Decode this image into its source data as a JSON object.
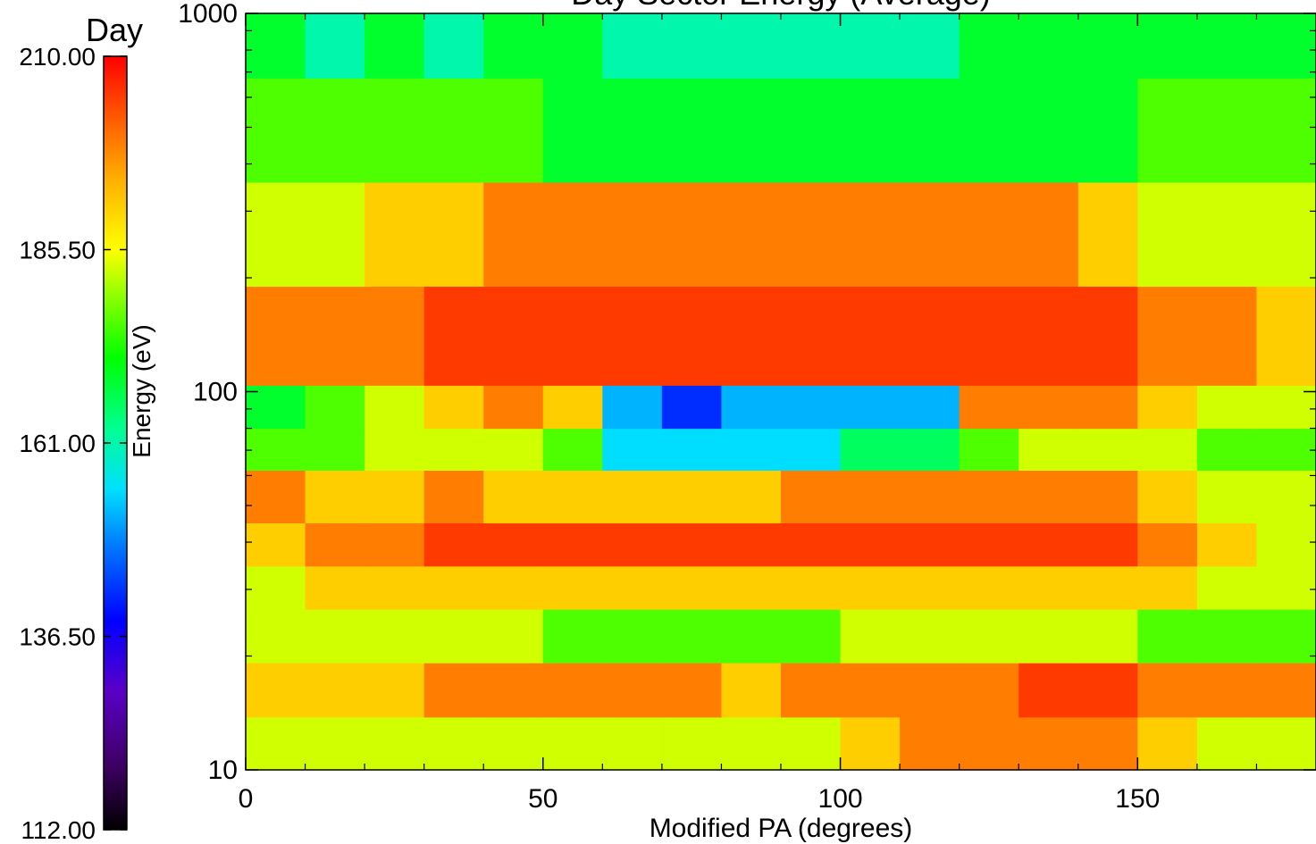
{
  "chart_data": {
    "type": "heatmap",
    "title": "Day Sector Energy (Average)",
    "xlabel": "Modified PA (degrees)",
    "ylabel": "",
    "xlim": [
      0,
      180
    ],
    "ylim": [
      10,
      1000
    ],
    "y_scale": "log",
    "x_ticks": [
      0,
      50,
      100,
      150
    ],
    "x_tick_labels": [
      "0",
      "50",
      "100",
      "150"
    ],
    "y_ticks": [
      10,
      100,
      1000
    ],
    "y_tick_labels": [
      "10",
      "100",
      "1000"
    ],
    "grid": false,
    "x_edges": [
      0,
      10,
      20,
      30,
      40,
      50,
      60,
      70,
      80,
      90,
      100,
      110,
      120,
      130,
      140,
      150,
      160,
      170,
      180
    ],
    "y_edges": [
      10,
      13.8,
      19.2,
      26.6,
      34.6,
      45,
      62,
      80,
      104,
      190,
      358,
      675,
      1000
    ],
    "rows": [
      {
        "values": [
          183,
          183,
          183,
          183,
          183,
          183,
          183,
          183,
          183,
          183,
          191,
          199,
          199,
          199,
          199,
          191,
          183,
          183
        ]
      },
      {
        "values": [
          191,
          191,
          191,
          199,
          199,
          199,
          199,
          199,
          191,
          199,
          199,
          199,
          199,
          205,
          205,
          199,
          199,
          199
        ]
      },
      {
        "values": [
          183,
          183,
          183,
          183,
          183,
          176,
          176,
          176,
          176,
          176,
          183,
          183,
          183,
          183,
          183,
          176,
          176,
          176
        ]
      },
      {
        "values": [
          183,
          191,
          191,
          191,
          191,
          191,
          191,
          191,
          191,
          191,
          191,
          191,
          191,
          191,
          191,
          191,
          183,
          183
        ]
      },
      {
        "values": [
          191,
          199,
          199,
          205,
          205,
          205,
          205,
          205,
          205,
          205,
          205,
          205,
          205,
          205,
          205,
          199,
          191,
          183
        ]
      },
      {
        "values": [
          199,
          191,
          191,
          199,
          191,
          191,
          191,
          191,
          191,
          199,
          199,
          199,
          199,
          199,
          199,
          191,
          183,
          183
        ]
      },
      {
        "values": [
          176,
          176,
          183,
          183,
          183,
          176,
          155,
          155,
          155,
          155,
          166,
          166,
          176,
          183,
          183,
          183,
          176,
          176
        ]
      },
      {
        "values": [
          169,
          176,
          183,
          191,
          199,
          191,
          152,
          142,
          152,
          152,
          152,
          152,
          199,
          199,
          199,
          191,
          183,
          183
        ]
      },
      {
        "values": [
          199,
          199,
          199,
          205,
          205,
          205,
          205,
          205,
          205,
          205,
          205,
          205,
          205,
          205,
          205,
          199,
          199,
          191
        ]
      },
      {
        "values": [
          183,
          183,
          191,
          191,
          199,
          199,
          199,
          199,
          199,
          199,
          199,
          199,
          199,
          199,
          191,
          183,
          183,
          183
        ]
      },
      {
        "values": [
          176,
          176,
          176,
          176,
          176,
          169,
          169,
          169,
          169,
          169,
          169,
          169,
          169,
          169,
          169,
          176,
          176,
          176
        ]
      },
      {
        "values": [
          169,
          161,
          169,
          161,
          169,
          169,
          161,
          161,
          161,
          161,
          161,
          161,
          169,
          169,
          169,
          169,
          169,
          169
        ]
      }
    ],
    "colorbar": {
      "title": "Day",
      "label": "Energy (eV)",
      "min": 112.0,
      "max": 210.0,
      "tick_labels": [
        "112.00",
        "136.50",
        "161.00",
        "185.50",
        "210.00"
      ],
      "colormap": "rainbow"
    }
  }
}
